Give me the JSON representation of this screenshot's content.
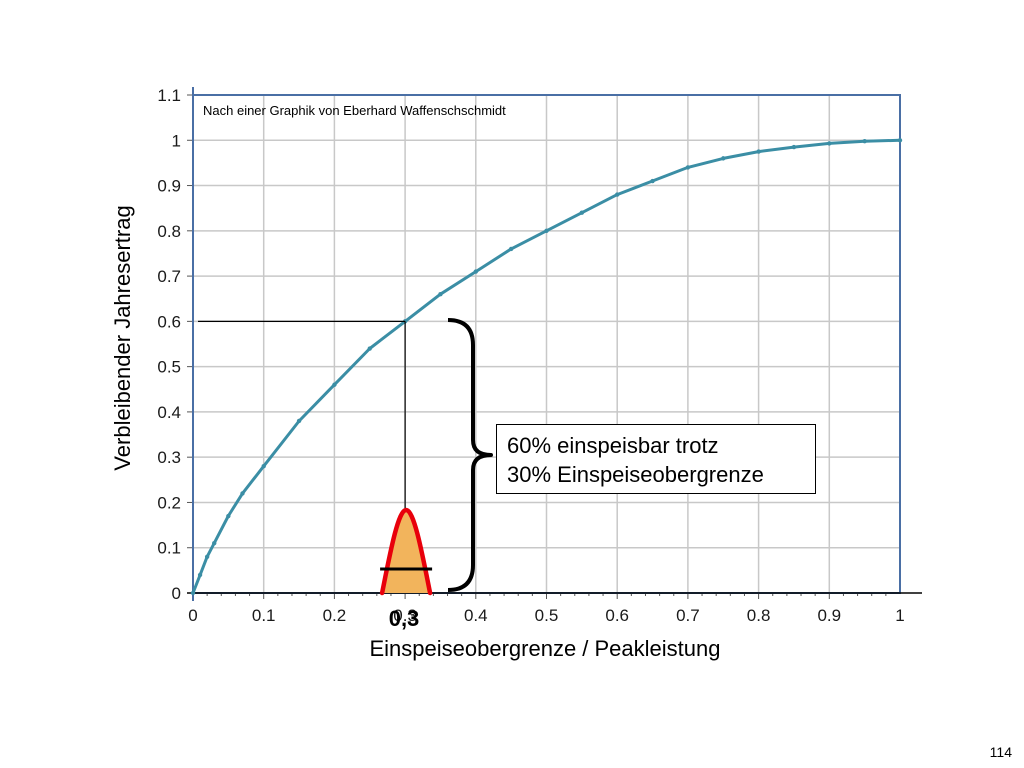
{
  "chart_data": {
    "type": "line",
    "title": "",
    "source_note": "Nach einer Graphik von Eberhard Waffenschschmidt",
    "xlabel": "Einspeiseobergrenze / Peakleistung",
    "ylabel": "Verbleibender Jahresertrag",
    "xlim": [
      0,
      1
    ],
    "ylim": [
      0,
      1.1
    ],
    "grid": true,
    "x_ticks": [
      "0",
      "0.1",
      "0.2",
      "0.3",
      "0.4",
      "0.5",
      "0.6",
      "0.7",
      "0.8",
      "0.9",
      "1"
    ],
    "y_ticks": [
      "0",
      "0.1",
      "0.2",
      "0.3",
      "0.4",
      "0.5",
      "0.6",
      "0.7",
      "0.8",
      "0.9",
      "1",
      "1.1"
    ],
    "series": [
      {
        "color": "#3b8ea5",
        "x": [
          0,
          0.01,
          0.02,
          0.03,
          0.05,
          0.07,
          0.1,
          0.15,
          0.2,
          0.25,
          0.3,
          0.35,
          0.4,
          0.45,
          0.5,
          0.55,
          0.6,
          0.65,
          0.7,
          0.75,
          0.8,
          0.85,
          0.9,
          0.95,
          1.0
        ],
        "y": [
          0,
          0.04,
          0.08,
          0.11,
          0.17,
          0.22,
          0.28,
          0.38,
          0.46,
          0.54,
          0.6,
          0.66,
          0.71,
          0.76,
          0.8,
          0.84,
          0.88,
          0.91,
          0.94,
          0.96,
          0.975,
          0.985,
          0.993,
          0.998,
          1.0
        ]
      }
    ],
    "marker": {
      "x": 0.3,
      "y": 0.6
    },
    "marker_label": "0,3",
    "distribution_color": "#f2b45c",
    "distribution_outline": "#e8000b",
    "annotation_lines": [
      "60% einspeisbar trotz",
      "30% Einspeiseobergrenze"
    ]
  },
  "page_number": "114"
}
